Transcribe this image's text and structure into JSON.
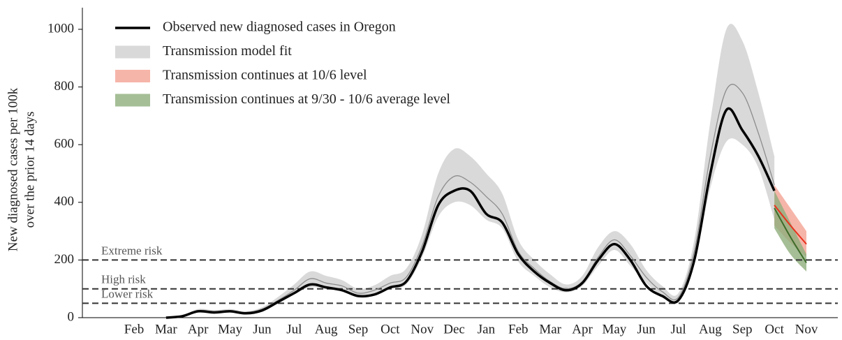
{
  "chart_data": {
    "type": "line",
    "y_label": [
      "New diagnosed cases per 100k",
      "over the prior 14 days"
    ],
    "categories": [
      "Feb",
      null,
      "Mar",
      null,
      "Apr",
      null,
      "May",
      null,
      "Jun",
      null,
      "Jul",
      null,
      "Aug",
      null,
      "Sep",
      null,
      "Oct",
      null,
      "Nov",
      null,
      "Dec",
      null,
      "Jan",
      null,
      "Feb",
      null,
      "Mar",
      null,
      "Apr",
      null,
      "May",
      null,
      "Jun",
      null,
      "Jul",
      null,
      "Aug",
      null,
      "Sep",
      null,
      "Oct",
      null,
      "Nov"
    ],
    "ylim": [
      0,
      1075
    ],
    "yticks": [
      0,
      200,
      400,
      600,
      800,
      1000
    ],
    "bands": [
      {
        "name": "Transmission model fit",
        "color": "#d9d9d9",
        "lower": [
          null,
          null,
          0,
          3,
          20,
          18,
          20,
          14,
          24,
          48,
          80,
          105,
          100,
          92,
          72,
          80,
          100,
          115,
          210,
          350,
          400,
          390,
          340,
          310,
          195,
          145,
          105,
          88,
          110,
          180,
          235,
          180,
          120,
          75,
          58,
          190,
          450,
          610,
          600,
          520,
          340,
          null,
          null
        ],
        "upper": [
          null,
          null,
          0,
          7,
          30,
          26,
          30,
          22,
          36,
          72,
          115,
          160,
          145,
          130,
          100,
          112,
          145,
          170,
          290,
          500,
          585,
          560,
          500,
          430,
          270,
          200,
          150,
          115,
          145,
          245,
          300,
          255,
          165,
          110,
          85,
          270,
          680,
          1000,
          960,
          780,
          560,
          null,
          null
        ]
      },
      {
        "name": "Transmission continues at 10/6 level",
        "color": "#f4a293",
        "lower": [
          null,
          null,
          null,
          null,
          null,
          null,
          null,
          null,
          null,
          null,
          null,
          null,
          null,
          null,
          null,
          null,
          null,
          null,
          null,
          null,
          null,
          null,
          null,
          null,
          null,
          null,
          null,
          null,
          null,
          null,
          null,
          null,
          null,
          null,
          null,
          null,
          null,
          null,
          null,
          null,
          320,
          260,
          210
        ],
        "upper": [
          null,
          null,
          null,
          null,
          null,
          null,
          null,
          null,
          null,
          null,
          null,
          null,
          null,
          null,
          null,
          null,
          null,
          null,
          null,
          null,
          null,
          null,
          null,
          null,
          null,
          null,
          null,
          null,
          null,
          null,
          null,
          null,
          null,
          null,
          null,
          null,
          null,
          null,
          null,
          null,
          460,
          380,
          300
        ]
      },
      {
        "name": "Transmission continues at 9/30 - 10/6 average level",
        "color": "#8fae7c",
        "lower": [
          null,
          null,
          null,
          null,
          null,
          null,
          null,
          null,
          null,
          null,
          null,
          null,
          null,
          null,
          null,
          null,
          null,
          null,
          null,
          null,
          null,
          null,
          null,
          null,
          null,
          null,
          null,
          null,
          null,
          null,
          null,
          null,
          null,
          null,
          null,
          null,
          null,
          null,
          null,
          null,
          310,
          220,
          160
        ],
        "upper": [
          null,
          null,
          null,
          null,
          null,
          null,
          null,
          null,
          null,
          null,
          null,
          null,
          null,
          null,
          null,
          null,
          null,
          null,
          null,
          null,
          null,
          null,
          null,
          null,
          null,
          null,
          null,
          null,
          null,
          null,
          null,
          null,
          null,
          null,
          null,
          null,
          null,
          null,
          null,
          null,
          440,
          330,
          220
        ]
      }
    ],
    "series": [
      {
        "name": "Observed new diagnosed cases in Oregon",
        "color": "#000000",
        "width": 3.5,
        "values": [
          null,
          null,
          0,
          5,
          22,
          18,
          22,
          15,
          25,
          55,
          85,
          115,
          105,
          95,
          75,
          80,
          105,
          125,
          230,
          390,
          440,
          440,
          360,
          330,
          220,
          160,
          120,
          95,
          120,
          200,
          255,
          200,
          110,
          75,
          60,
          200,
          500,
          720,
          650,
          560,
          440,
          null,
          null
        ]
      },
      {
        "color": "#8c8c8c",
        "width": 1.3,
        "values": [
          null,
          null,
          0,
          5,
          25,
          22,
          25,
          18,
          30,
          60,
          95,
          135,
          120,
          110,
          85,
          95,
          120,
          140,
          250,
          420,
          490,
          470,
          420,
          360,
          230,
          170,
          125,
          100,
          125,
          210,
          270,
          215,
          140,
          90,
          70,
          230,
          560,
          790,
          780,
          640,
          460,
          null,
          null
        ]
      },
      {
        "color": "#e8321e",
        "width": 2,
        "values": [
          null,
          null,
          null,
          null,
          null,
          null,
          null,
          null,
          null,
          null,
          null,
          null,
          null,
          null,
          null,
          null,
          null,
          null,
          null,
          null,
          null,
          null,
          null,
          null,
          null,
          null,
          null,
          null,
          null,
          null,
          null,
          null,
          null,
          null,
          null,
          null,
          null,
          null,
          null,
          null,
          390,
          320,
          255
        ]
      },
      {
        "color": "#3d6b2a",
        "width": 2,
        "values": [
          null,
          null,
          null,
          null,
          null,
          null,
          null,
          null,
          null,
          null,
          null,
          null,
          null,
          null,
          null,
          null,
          null,
          null,
          null,
          null,
          null,
          null,
          null,
          null,
          null,
          null,
          null,
          null,
          null,
          null,
          null,
          null,
          null,
          null,
          null,
          null,
          null,
          null,
          null,
          null,
          380,
          280,
          190
        ]
      }
    ],
    "reference_lines": [
      {
        "value": 200,
        "label": "Extreme risk"
      },
      {
        "value": 100,
        "label": "High risk"
      },
      {
        "value": 50,
        "label": "Lower risk"
      }
    ]
  }
}
